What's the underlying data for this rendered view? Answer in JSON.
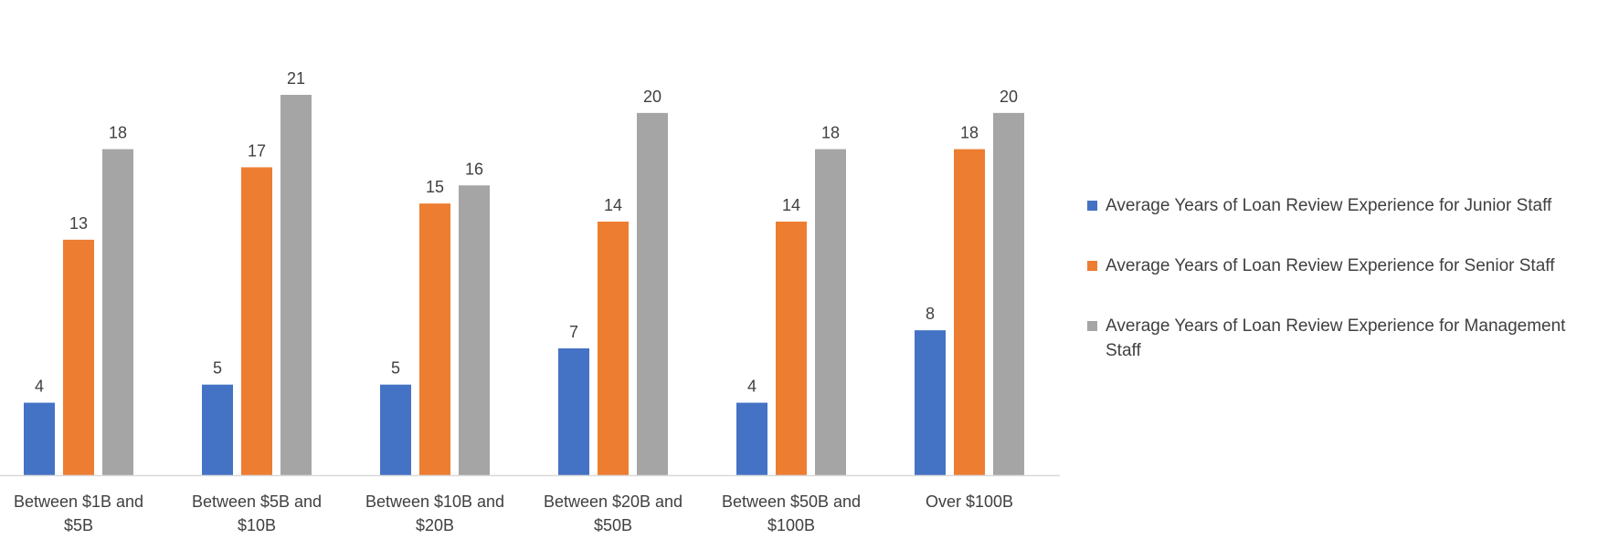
{
  "chart_data": {
    "type": "bar",
    "categories": [
      [
        "Between $1B and",
        "$5B"
      ],
      [
        "Between $5B and",
        "$10B"
      ],
      [
        "Between $10B and",
        "$20B"
      ],
      [
        "Between $20B and",
        "$50B"
      ],
      [
        "Between $50B and",
        "$100B"
      ],
      [
        "Over $100B"
      ]
    ],
    "series": [
      {
        "name": "Average Years of Loan Review Experience for Junior Staff",
        "color": "#4472C4",
        "values": [
          4,
          5,
          5,
          7,
          4,
          8
        ]
      },
      {
        "name": "Average Years of Loan Review Experience for Senior Staff",
        "color": "#ED7D31",
        "values": [
          13,
          17,
          15,
          14,
          14,
          18
        ]
      },
      {
        "name": "Average Years of Loan Review Experience for Management Staff",
        "color": "#A5A5A5",
        "values": [
          18,
          21,
          16,
          20,
          18,
          20
        ]
      }
    ],
    "ylim": [
      0,
      22
    ],
    "grid": false,
    "data_labels": true,
    "legend_position": "right"
  }
}
